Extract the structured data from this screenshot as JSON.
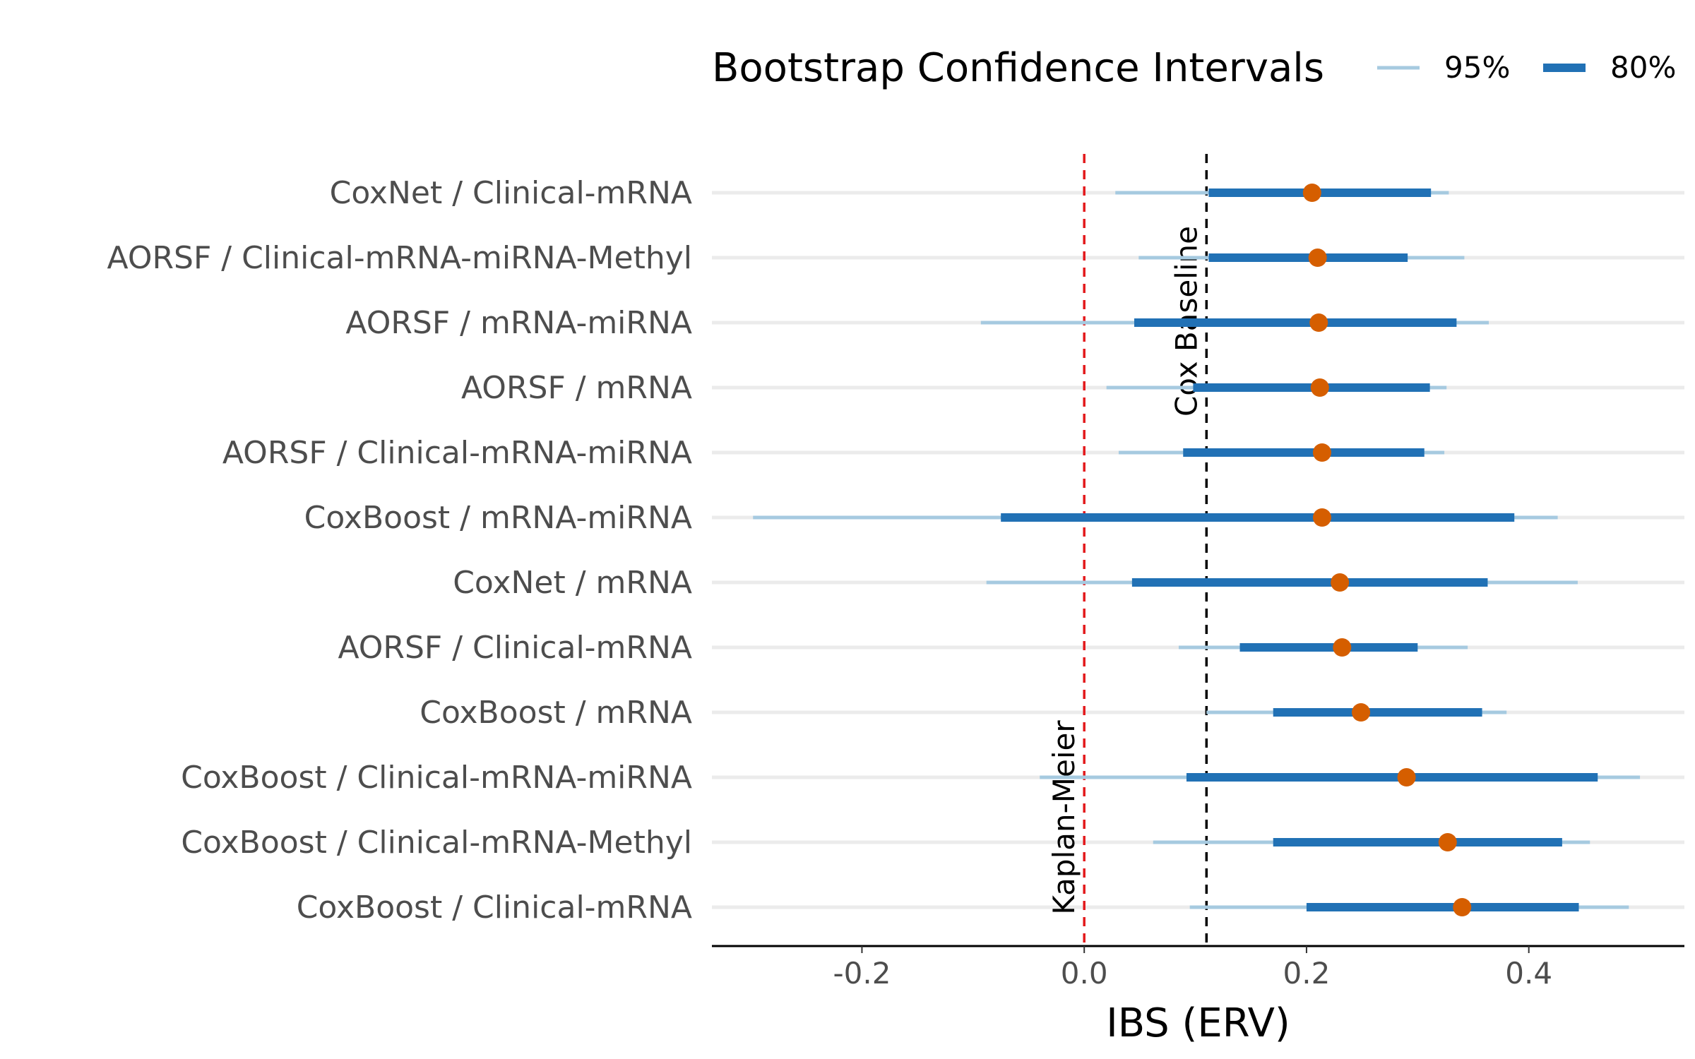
{
  "chart_data": {
    "type": "forest",
    "title": "",
    "xlabel": "IBS (ERV)",
    "ylabel": "",
    "xlim": [
      -0.335,
      0.54
    ],
    "x_ticks": [
      -0.2,
      0.0,
      0.2,
      0.4
    ],
    "x_tick_labels": [
      "-0.2",
      "0.0",
      "0.2",
      "0.4"
    ],
    "grid": "horizontal",
    "legend": {
      "title": "Bootstrap Confidence Intervals",
      "placement": "top",
      "entries": [
        {
          "label": "95%",
          "color": "#a6cae0"
        },
        {
          "label": "80%",
          "color": "#2171b5"
        }
      ]
    },
    "reference_lines": [
      {
        "label": "Kaplan-Meier",
        "x": 0.0,
        "color": "#e3191c",
        "style": "dashed"
      },
      {
        "label": "Cox Baseline",
        "x": 0.11,
        "color": "#000000",
        "style": "dashed"
      }
    ],
    "point_color": "#d55e00",
    "rows": [
      {
        "label": "CoxNet / Clinical-mRNA",
        "estimate": 0.205,
        "ci95": [
          0.028,
          0.328
        ],
        "ci80": [
          0.112,
          0.312
        ]
      },
      {
        "label": "AORSF / Clinical-mRNA-miRNA-Methyl",
        "estimate": 0.21,
        "ci95": [
          0.049,
          0.342
        ],
        "ci80": [
          0.112,
          0.291
        ]
      },
      {
        "label": "AORSF / mRNA-miRNA",
        "estimate": 0.211,
        "ci95": [
          -0.093,
          0.364
        ],
        "ci80": [
          0.045,
          0.335
        ]
      },
      {
        "label": "AORSF / mRNA",
        "estimate": 0.212,
        "ci95": [
          0.02,
          0.326
        ],
        "ci80": [
          0.098,
          0.311
        ]
      },
      {
        "label": "AORSF / Clinical-mRNA-miRNA",
        "estimate": 0.214,
        "ci95": [
          0.031,
          0.324
        ],
        "ci80": [
          0.089,
          0.306
        ]
      },
      {
        "label": "CoxBoost / mRNA-miRNA",
        "estimate": 0.214,
        "ci95": [
          -0.298,
          0.426
        ],
        "ci80": [
          -0.075,
          0.387
        ]
      },
      {
        "label": "CoxNet / mRNA",
        "estimate": 0.23,
        "ci95": [
          -0.088,
          0.444
        ],
        "ci80": [
          0.043,
          0.363
        ]
      },
      {
        "label": "AORSF / Clinical-mRNA",
        "estimate": 0.232,
        "ci95": [
          0.085,
          0.345
        ],
        "ci80": [
          0.14,
          0.3
        ]
      },
      {
        "label": "CoxBoost / mRNA",
        "estimate": 0.249,
        "ci95": [
          0.11,
          0.38
        ],
        "ci80": [
          0.17,
          0.358
        ]
      },
      {
        "label": "CoxBoost / Clinical-mRNA-miRNA",
        "estimate": 0.29,
        "ci95": [
          -0.04,
          0.5
        ],
        "ci80": [
          0.092,
          0.462
        ]
      },
      {
        "label": "CoxBoost / Clinical-mRNA-Methyl",
        "estimate": 0.327,
        "ci95": [
          0.062,
          0.455
        ],
        "ci80": [
          0.17,
          0.43
        ]
      },
      {
        "label": "CoxBoost / Clinical-mRNA",
        "estimate": 0.34,
        "ci95": [
          0.095,
          0.49
        ],
        "ci80": [
          0.2,
          0.445
        ]
      }
    ]
  }
}
